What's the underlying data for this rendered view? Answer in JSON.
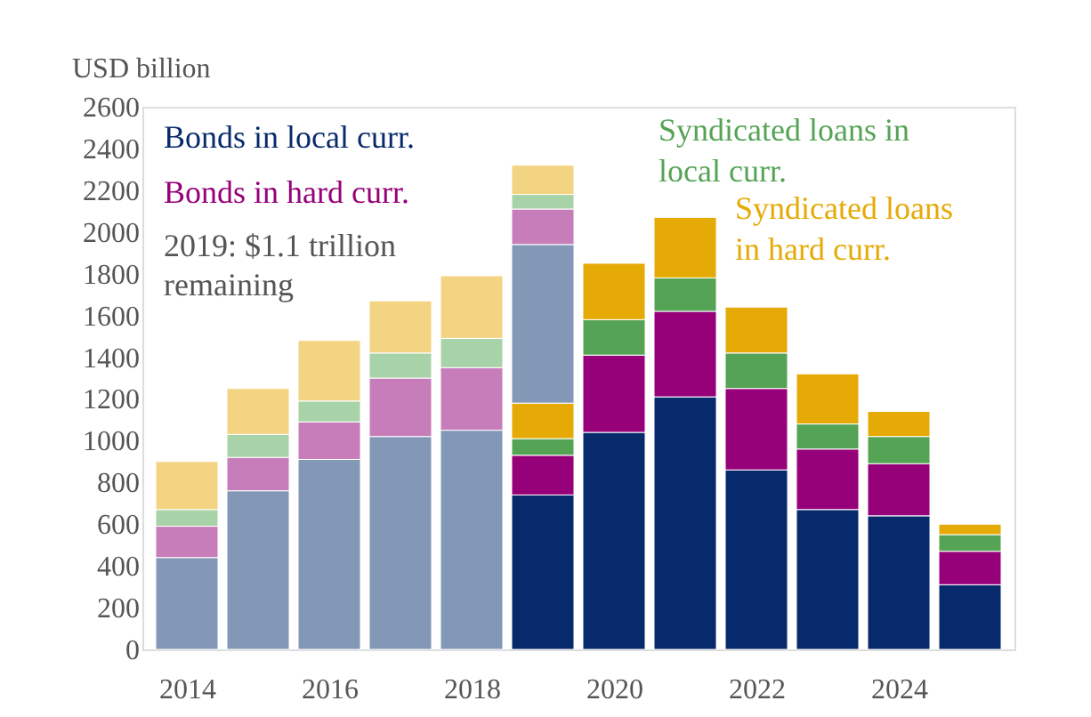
{
  "chart_data": {
    "type": "bar",
    "stacked": true,
    "ylabel": "USD billion",
    "categories": [
      "2014",
      null,
      "2016",
      null,
      "2018",
      null,
      "2020",
      null,
      "2022",
      null,
      "2024",
      null
    ],
    "series": [
      {
        "name": "Bonds in local curr.",
        "color": "#062a6b",
        "values": [
          null,
          null,
          null,
          null,
          null,
          740,
          1040,
          1210,
          860,
          670,
          640,
          310
        ]
      },
      {
        "name": "Bonds in hard curr.",
        "color": "#960078",
        "values": [
          null,
          null,
          null,
          null,
          null,
          190,
          370,
          410,
          390,
          290,
          250,
          160
        ]
      },
      {
        "name": "Syndicated loans in local curr.",
        "color": "#55a355",
        "values": [
          null,
          null,
          null,
          null,
          null,
          80,
          170,
          160,
          170,
          120,
          130,
          80
        ]
      },
      {
        "name": "Syndicated loans in hard curr.",
        "color": "#e5aa05",
        "values": [
          null,
          null,
          null,
          null,
          null,
          170,
          270,
          290,
          220,
          240,
          120,
          50
        ]
      },
      {
        "color": "#8298b6",
        "values": [
          440,
          760,
          910,
          1020,
          1050,
          760,
          null,
          null,
          null,
          null,
          null,
          null
        ]
      },
      {
        "color": "#c87dbb",
        "values": [
          150,
          160,
          180,
          280,
          300,
          170,
          null,
          null,
          null,
          null,
          null,
          null
        ]
      },
      {
        "color": "#a8d3a8",
        "values": [
          80,
          110,
          100,
          120,
          140,
          70,
          null,
          null,
          null,
          null,
          null,
          null
        ]
      },
      {
        "color": "#f3d482",
        "values": [
          230,
          220,
          290,
          250,
          300,
          140,
          null,
          null,
          null,
          null,
          null,
          null
        ]
      }
    ],
    "annotations": [
      "2019: $1.1 trillion remaining"
    ],
    "ylim": [
      0,
      2600
    ],
    "yticks": [
      0,
      200,
      400,
      600,
      800,
      1000,
      1200,
      1400,
      1600,
      1800,
      2000,
      2200,
      2400,
      2600
    ],
    "grid": false,
    "legend": "top"
  }
}
